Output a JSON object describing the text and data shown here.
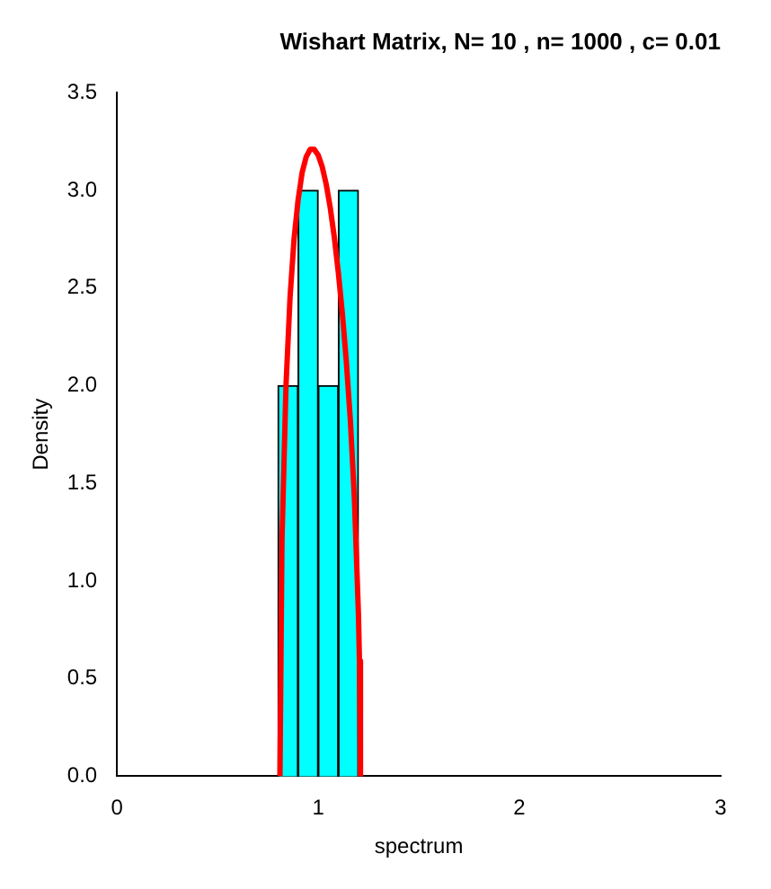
{
  "chart_data": {
    "type": "histogram",
    "title": "Wishart Matrix, N= 10 , n= 1000 , c= 0.01",
    "xlabel": "spectrum",
    "ylabel": "Density",
    "bins": [
      0.8,
      0.9,
      1.0,
      1.1,
      1.2
    ],
    "values": [
      2,
      3,
      2,
      3
    ],
    "color": "#00ffff",
    "series": [
      {
        "type": "line",
        "color": "#ff0000",
        "x": [
          0.81,
          0.82,
          0.84,
          0.86,
          0.88,
          0.9,
          0.92,
          0.94,
          0.96,
          0.98,
          1.0,
          1.02,
          1.04,
          1.06,
          1.08,
          1.1,
          1.12,
          1.14,
          1.16,
          1.18,
          1.2,
          1.205,
          1.21
        ],
        "values": [
          0,
          1.21,
          2.0,
          2.45,
          2.75,
          2.95,
          3.09,
          3.17,
          3.21,
          3.21,
          3.18,
          3.12,
          3.03,
          2.91,
          2.76,
          2.58,
          2.37,
          2.12,
          1.82,
          1.42,
          0.83,
          0.59,
          0
        ]
      }
    ],
    "xlim": [
      0,
      3
    ],
    "xticks": [
      0,
      1,
      2,
      3
    ],
    "ylim": [
      0,
      3.5
    ],
    "yticks": [
      {
        "value": 0,
        "label": "0.0"
      },
      0.5,
      {
        "value": 1,
        "label": "1.0"
      },
      1.5,
      {
        "value": 2,
        "label": "2.0"
      },
      2.5,
      {
        "value": 3,
        "label": "3.0"
      },
      3.5
    ],
    "grid": false,
    "legend": false
  }
}
